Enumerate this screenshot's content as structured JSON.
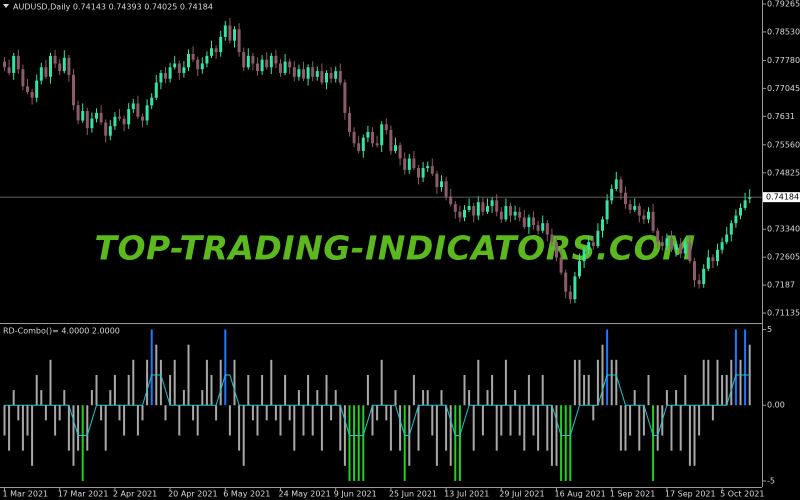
{
  "watermark": "TOP-TRADING-INDICATORS.COM",
  "chart_data": [
    {
      "type": "candlestick",
      "title": "AUDUSD,Daily",
      "categories": [
        "1 Mar 2021",
        null,
        null,
        null,
        null,
        null,
        null,
        null,
        null,
        null,
        null,
        null,
        "17 Mar 2021",
        null,
        null,
        null,
        null,
        null,
        null,
        null,
        null,
        null,
        null,
        null,
        "2 Apr 2021",
        null,
        null,
        null,
        null,
        null,
        null,
        null,
        null,
        null,
        null,
        null,
        "20 Apr 2021",
        null,
        null,
        null,
        null,
        null,
        null,
        null,
        null,
        null,
        null,
        null,
        "6 May 2021",
        null,
        null,
        null,
        null,
        null,
        null,
        null,
        null,
        null,
        null,
        null,
        "24 May 2021",
        null,
        null,
        null,
        null,
        null,
        null,
        null,
        null,
        null,
        null,
        null,
        "9 Jun 2021",
        null,
        null,
        null,
        null,
        null,
        null,
        null,
        null,
        null,
        null,
        null,
        "25 Jun 2021",
        null,
        null,
        null,
        null,
        null,
        null,
        null,
        null,
        null,
        null,
        null,
        "13 Jul 2021",
        null,
        null,
        null,
        null,
        null,
        null,
        null,
        null,
        null,
        null,
        null,
        "29 Jul 2021",
        null,
        null,
        null,
        null,
        null,
        null,
        null,
        null,
        null,
        null,
        null,
        "16 Aug 2021",
        null,
        null,
        null,
        null,
        null,
        null,
        null,
        null,
        null,
        null,
        null,
        "1 Sep 2021",
        null,
        null,
        null,
        null,
        null,
        null,
        null,
        null,
        null,
        null,
        null,
        "17 Sep 2021",
        null,
        null,
        null,
        null,
        null,
        null,
        null,
        null,
        null,
        null,
        null,
        "5 Oct 2021",
        null,
        null,
        null,
        null,
        null,
        null
      ],
      "open": [
        0.7775,
        0.776,
        0.7745,
        0.779,
        0.7755,
        0.771,
        0.7695,
        0.768,
        0.7725,
        0.776,
        0.7735,
        0.779,
        0.777,
        0.775,
        0.7785,
        0.774,
        0.766,
        0.762,
        0.7645,
        0.76,
        0.7625,
        0.764,
        0.7615,
        0.758,
        0.7605,
        0.763,
        0.7625,
        0.761,
        0.765,
        0.7665,
        0.763,
        0.762,
        0.766,
        0.768,
        0.772,
        0.7745,
        0.773,
        0.776,
        0.777,
        0.7745,
        0.776,
        0.7795,
        0.778,
        0.7755,
        0.777,
        0.779,
        0.781,
        0.78,
        0.784,
        0.787,
        0.783,
        0.786,
        0.78,
        0.776,
        0.779,
        0.777,
        0.775,
        0.778,
        0.776,
        0.779,
        0.777,
        0.7745,
        0.7775,
        0.776,
        0.7735,
        0.7755,
        0.773,
        0.776,
        0.7735,
        0.775,
        0.772,
        0.7745,
        0.773,
        0.775,
        0.772,
        0.764,
        0.759,
        0.756,
        0.754,
        0.7575,
        0.759,
        0.756,
        0.7555,
        0.761,
        0.7595,
        0.754,
        0.7555,
        0.752,
        0.749,
        0.752,
        0.7495,
        0.747,
        0.7495,
        0.75,
        0.748,
        0.7445,
        0.746,
        0.742,
        0.74,
        0.738,
        0.7365,
        0.7385,
        0.7395,
        0.737,
        0.7405,
        0.738,
        0.7395,
        0.741,
        0.738,
        0.736,
        0.7395,
        0.737,
        0.738,
        0.7365,
        0.734,
        0.7365,
        0.7345,
        0.733,
        0.735,
        0.732,
        0.73,
        0.726,
        0.722,
        0.717,
        0.715,
        0.721,
        0.725,
        0.728,
        0.73,
        0.729,
        0.733,
        0.736,
        0.741,
        0.744,
        0.7465,
        0.743,
        0.74,
        0.7385,
        0.7395,
        0.737,
        0.736,
        0.738,
        0.733,
        0.73,
        0.729,
        0.731,
        0.728,
        0.7295,
        0.727,
        0.73,
        0.725,
        0.72,
        0.719,
        0.723,
        0.726,
        0.725,
        0.728,
        0.73,
        0.732,
        0.735,
        0.737,
        0.739,
        0.74143
      ],
      "high": [
        0.7787,
        0.778,
        0.7798,
        0.7806,
        0.7767,
        0.773,
        0.7703,
        0.7741,
        0.7772,
        0.778,
        0.7798,
        0.7806,
        0.7782,
        0.7805,
        0.7793,
        0.7756,
        0.7672,
        0.7665,
        0.7653,
        0.7641,
        0.7652,
        0.766,
        0.7623,
        0.7621,
        0.7642,
        0.765,
        0.7633,
        0.7666,
        0.7677,
        0.7685,
        0.7638,
        0.7676,
        0.7692,
        0.774,
        0.7753,
        0.7761,
        0.7772,
        0.779,
        0.7778,
        0.7776,
        0.7807,
        0.7815,
        0.7788,
        0.7786,
        0.7802,
        0.783,
        0.7818,
        0.7856,
        0.7882,
        0.789,
        0.7868,
        0.7876,
        0.7812,
        0.781,
        0.7798,
        0.7786,
        0.7792,
        0.78,
        0.7798,
        0.7806,
        0.7782,
        0.7795,
        0.7783,
        0.7776,
        0.7767,
        0.7775,
        0.7768,
        0.7776,
        0.7762,
        0.777,
        0.7753,
        0.7761,
        0.7762,
        0.777,
        0.7728,
        0.7656,
        0.7602,
        0.758,
        0.7583,
        0.7606,
        0.7602,
        0.758,
        0.7618,
        0.7626,
        0.7607,
        0.7575,
        0.7563,
        0.7536,
        0.7532,
        0.754,
        0.7503,
        0.7511,
        0.7512,
        0.752,
        0.7488,
        0.7476,
        0.7472,
        0.744,
        0.7408,
        0.7396,
        0.7397,
        0.7415,
        0.7403,
        0.7421,
        0.7417,
        0.7415,
        0.7418,
        0.7426,
        0.7392,
        0.7415,
        0.7403,
        0.7396,
        0.7392,
        0.7385,
        0.7373,
        0.7381,
        0.7357,
        0.737,
        0.7358,
        0.7336,
        0.7312,
        0.728,
        0.7228,
        0.7186,
        0.7222,
        0.727,
        0.7288,
        0.7316,
        0.7312,
        0.735,
        0.7368,
        0.7426,
        0.7452,
        0.7485,
        0.7473,
        0.7446,
        0.7412,
        0.7415,
        0.7403,
        0.7386,
        0.7392,
        0.74,
        0.7338,
        0.7316,
        0.7322,
        0.733,
        0.7303,
        0.7311,
        0.7312,
        0.732,
        0.7258,
        0.7216,
        0.7242,
        0.728,
        0.7268,
        0.7296,
        0.7312,
        0.734,
        0.7358,
        0.7386,
        0.7402,
        0.743,
        0.74393
      ],
      "low": [
        0.775,
        0.7739,
        0.7727,
        0.7743,
        0.77,
        0.7689,
        0.7662,
        0.7668,
        0.7715,
        0.7729,
        0.7717,
        0.7758,
        0.774,
        0.7744,
        0.7722,
        0.7648,
        0.761,
        0.7614,
        0.7582,
        0.7588,
        0.7615,
        0.7609,
        0.7562,
        0.7568,
        0.7595,
        0.7619,
        0.7592,
        0.7598,
        0.764,
        0.7624,
        0.7602,
        0.7608,
        0.765,
        0.7674,
        0.7702,
        0.7718,
        0.772,
        0.7754,
        0.7727,
        0.7733,
        0.775,
        0.7774,
        0.7737,
        0.7743,
        0.776,
        0.7784,
        0.7782,
        0.7788,
        0.783,
        0.7824,
        0.7812,
        0.7788,
        0.775,
        0.7754,
        0.7752,
        0.7738,
        0.774,
        0.7754,
        0.7742,
        0.7758,
        0.7735,
        0.7739,
        0.7742,
        0.7723,
        0.7725,
        0.7724,
        0.7712,
        0.7723,
        0.7725,
        0.7714,
        0.7702,
        0.7718,
        0.772,
        0.7714,
        0.7622,
        0.7578,
        0.755,
        0.7534,
        0.7522,
        0.7563,
        0.755,
        0.7549,
        0.7537,
        0.7583,
        0.753,
        0.7534,
        0.7502,
        0.7478,
        0.748,
        0.7489,
        0.7452,
        0.7458,
        0.7485,
        0.7474,
        0.7427,
        0.7433,
        0.741,
        0.7394,
        0.7362,
        0.7353,
        0.7355,
        0.7379,
        0.7352,
        0.7358,
        0.737,
        0.7374,
        0.7377,
        0.7368,
        0.735,
        0.7354,
        0.7352,
        0.7358,
        0.7355,
        0.7334,
        0.7322,
        0.7333,
        0.732,
        0.7324,
        0.7302,
        0.7288,
        0.725,
        0.7214,
        0.7152,
        0.7138,
        0.714,
        0.7204,
        0.7232,
        0.7268,
        0.728,
        0.7284,
        0.7312,
        0.7348,
        0.74,
        0.7434,
        0.7412,
        0.7388,
        0.7375,
        0.7379,
        0.7352,
        0.7348,
        0.735,
        0.7324,
        0.7282,
        0.7278,
        0.728,
        0.7274,
        0.7262,
        0.7258,
        0.726,
        0.7244,
        0.7182,
        0.7178,
        0.718,
        0.7224,
        0.7232,
        0.7238,
        0.727,
        0.7294,
        0.7302,
        0.7338,
        0.736,
        0.7384,
        0.74025
      ],
      "close": [
        0.776,
        0.7745,
        0.779,
        0.7755,
        0.771,
        0.7695,
        0.768,
        0.7725,
        0.776,
        0.7735,
        0.779,
        0.777,
        0.775,
        0.7785,
        0.774,
        0.766,
        0.762,
        0.7645,
        0.76,
        0.7625,
        0.764,
        0.7615,
        0.758,
        0.7605,
        0.763,
        0.7625,
        0.761,
        0.765,
        0.7665,
        0.763,
        0.762,
        0.766,
        0.768,
        0.772,
        0.7745,
        0.773,
        0.776,
        0.777,
        0.7745,
        0.776,
        0.7795,
        0.778,
        0.7755,
        0.777,
        0.779,
        0.781,
        0.78,
        0.784,
        0.787,
        0.783,
        0.786,
        0.78,
        0.776,
        0.779,
        0.777,
        0.775,
        0.778,
        0.776,
        0.779,
        0.777,
        0.7745,
        0.7775,
        0.776,
        0.7735,
        0.7755,
        0.773,
        0.776,
        0.7735,
        0.775,
        0.772,
        0.7745,
        0.773,
        0.775,
        0.772,
        0.764,
        0.759,
        0.756,
        0.754,
        0.7575,
        0.759,
        0.756,
        0.7555,
        0.761,
        0.7595,
        0.754,
        0.7555,
        0.752,
        0.749,
        0.752,
        0.7495,
        0.747,
        0.7495,
        0.75,
        0.748,
        0.7445,
        0.746,
        0.742,
        0.74,
        0.738,
        0.7365,
        0.7385,
        0.7395,
        0.737,
        0.7405,
        0.738,
        0.7395,
        0.741,
        0.738,
        0.736,
        0.7395,
        0.737,
        0.738,
        0.7365,
        0.734,
        0.7365,
        0.7345,
        0.733,
        0.735,
        0.732,
        0.73,
        0.726,
        0.722,
        0.717,
        0.715,
        0.721,
        0.725,
        0.728,
        0.73,
        0.729,
        0.733,
        0.736,
        0.741,
        0.744,
        0.7465,
        0.743,
        0.74,
        0.7385,
        0.7395,
        0.737,
        0.736,
        0.738,
        0.733,
        0.73,
        0.729,
        0.731,
        0.728,
        0.7295,
        0.727,
        0.73,
        0.725,
        0.72,
        0.719,
        0.723,
        0.726,
        0.725,
        0.728,
        0.73,
        0.732,
        0.735,
        0.737,
        0.739,
        0.741,
        0.74184
      ],
      "up_color": "#36e3a3",
      "down_color": "#8c5b6b",
      "ylim": [
        0.709,
        0.7937
      ],
      "yticks": [
        0.79265,
        {
          "value": 0.7853,
          "label": "0.78530"
        },
        {
          "value": 0.7778,
          "label": "0.77780"
        },
        0.77045,
        0.7631,
        {
          "value": 0.7556,
          "label": "0.75560"
        },
        0.74825,
        {
          "value": 0.7334,
          "label": "0.73340"
        },
        0.72605,
        0.7187,
        0.71135
      ],
      "last_price_line": true
    },
    {
      "type": "bar",
      "readout": {
        "label": "RD-Combo()=",
        "value_labels": [
          "4.0000",
          "2.0000"
        ]
      },
      "series": [
        {
          "color": "#a8a8a8",
          "values": [
            -2,
            -3,
            1,
            -1,
            -3,
            -2,
            -4,
            2,
            1,
            -1,
            3,
            -2,
            -1,
            1,
            -3,
            -4,
            -3,
            -5,
            -3,
            1,
            2,
            -1,
            -3,
            1,
            2,
            -1,
            -2,
            2,
            3,
            -2,
            -1,
            3,
            5,
            4,
            3,
            -1,
            2,
            3,
            -2,
            1,
            4,
            -1,
            -2,
            1,
            3,
            2,
            -1,
            3,
            5,
            -2,
            3,
            -3,
            -4,
            2,
            -1,
            -2,
            2,
            -1,
            3,
            -1,
            -2,
            2,
            -1,
            -3,
            1,
            -2,
            2,
            -2,
            1,
            -3,
            2,
            -1,
            1,
            -3,
            -4,
            -5,
            -5,
            -5,
            -5,
            2,
            -2,
            -1,
            3,
            -1,
            -3,
            1,
            -3,
            -5,
            -4,
            2,
            -3,
            1,
            1,
            -2,
            -4,
            1,
            -3,
            -4,
            -5,
            -5,
            2,
            1,
            -3,
            3,
            -2,
            1,
            2,
            -3,
            -2,
            3,
            -2,
            1,
            -2,
            -3,
            2,
            -2,
            -3,
            2,
            -3,
            -4,
            -4,
            -5,
            -5,
            -5,
            3,
            3,
            2,
            2,
            -1,
            3,
            4,
            5,
            3,
            3,
            -3,
            -3,
            -2,
            1,
            -3,
            -2,
            2,
            -5,
            -3,
            -2,
            1,
            -3,
            1,
            -3,
            2,
            -4,
            -4,
            -2,
            3,
            3,
            -1,
            3,
            2,
            2,
            3,
            5,
            3,
            5,
            4
          ]
        },
        {
          "type": "line",
          "color": "#20c4d0",
          "values": [
            0,
            0,
            0,
            0,
            0,
            0,
            0,
            0,
            0,
            0,
            0,
            0,
            0,
            0,
            0,
            -1,
            -2,
            -2,
            -2,
            -1,
            0,
            0,
            0,
            0,
            0,
            0,
            0,
            0,
            0,
            0,
            0,
            1,
            2,
            2,
            2,
            1,
            0,
            0,
            0,
            0,
            0,
            0,
            0,
            0,
            0,
            0,
            0,
            1,
            2,
            2,
            1,
            0,
            0,
            0,
            0,
            0,
            0,
            0,
            0,
            0,
            0,
            0,
            0,
            0,
            0,
            0,
            0,
            0,
            0,
            0,
            0,
            0,
            0,
            0,
            -1,
            -2,
            -2,
            -2,
            -2,
            -1,
            0,
            0,
            0,
            0,
            0,
            0,
            -1,
            -2,
            -2,
            -1,
            0,
            0,
            0,
            0,
            0,
            0,
            0,
            -1,
            -2,
            -2,
            -1,
            0,
            0,
            0,
            0,
            0,
            0,
            0,
            0,
            0,
            0,
            0,
            0,
            0,
            0,
            0,
            0,
            0,
            0,
            0,
            -1,
            -2,
            -2,
            -2,
            -1,
            0,
            0,
            0,
            0,
            0,
            1,
            2,
            2,
            2,
            1,
            0,
            0,
            0,
            0,
            0,
            -1,
            -2,
            -2,
            -1,
            0,
            0,
            0,
            0,
            0,
            0,
            0,
            0,
            0,
            0,
            0,
            0,
            0,
            0,
            1,
            2,
            2,
            2,
            2
          ]
        }
      ],
      "high_color": "#2277ff",
      "low_color": "#22d022",
      "ylim": [
        -5.4,
        5.3
      ],
      "yticks": [
        -5,
        {
          "value": 0,
          "label": "0.00"
        },
        5
      ]
    }
  ]
}
